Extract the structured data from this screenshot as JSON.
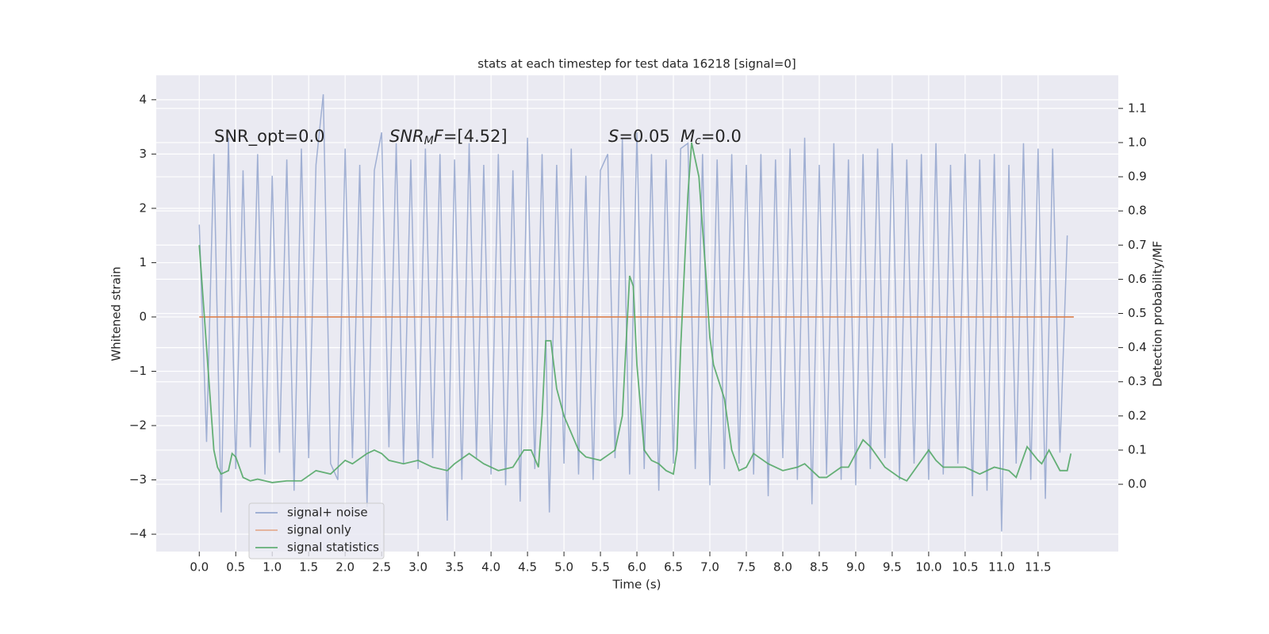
{
  "chart_data": {
    "type": "line",
    "title": "stats at each timestep for test data 16218 [signal=0]",
    "xlabel": "Time (s)",
    "ylabel": "Whitened strain",
    "y2label": "Detection probability/MF",
    "grid": true,
    "legend_loc": "lower left",
    "xlim": [
      -0.59,
      12.6
    ],
    "ylim": [
      -4.32,
      4.45
    ],
    "y2lim": [
      -0.197,
      1.197
    ],
    "xticks": [
      {
        "value": 0,
        "label": "0.0"
      },
      {
        "value": 0.5,
        "label": "0.5"
      },
      {
        "value": 1,
        "label": "1.0"
      },
      {
        "value": 1.5,
        "label": "1.5"
      },
      {
        "value": 2,
        "label": "2.0"
      },
      {
        "value": 2.5,
        "label": "2.5"
      },
      {
        "value": 3,
        "label": "3.0"
      },
      {
        "value": 3.5,
        "label": "3.5"
      },
      {
        "value": 4,
        "label": "4.0"
      },
      {
        "value": 4.5,
        "label": "4.5"
      },
      {
        "value": 5,
        "label": "5.0"
      },
      {
        "value": 5.5,
        "label": "5.5"
      },
      {
        "value": 6,
        "label": "6.0"
      },
      {
        "value": 6.5,
        "label": "6.5"
      },
      {
        "value": 7,
        "label": "7.0"
      },
      {
        "value": 7.5,
        "label": "7.5"
      },
      {
        "value": 8,
        "label": "8.0"
      },
      {
        "value": 8.5,
        "label": "8.5"
      },
      {
        "value": 9,
        "label": "9.0"
      },
      {
        "value": 9.5,
        "label": "9.5"
      },
      {
        "value": 10,
        "label": "10.0"
      },
      {
        "value": 10.5,
        "label": "10.5"
      },
      {
        "value": 11,
        "label": "11.0"
      },
      {
        "value": 11.5,
        "label": "11.5"
      }
    ],
    "yticks": [
      {
        "value": -4,
        "label": "−4"
      },
      {
        "value": -3,
        "label": "−3"
      },
      {
        "value": -2,
        "label": "−2"
      },
      {
        "value": -1,
        "label": "−1"
      },
      0,
      1,
      2,
      3,
      4
    ],
    "y2ticks": [
      {
        "value": 0,
        "label": "0.0"
      },
      {
        "value": 0.1,
        "label": "0.1"
      },
      {
        "value": 0.2,
        "label": "0.2"
      },
      {
        "value": 0.3,
        "label": "0.3"
      },
      {
        "value": 0.4,
        "label": "0.4"
      },
      {
        "value": 0.5,
        "label": "0.5"
      },
      {
        "value": 0.6,
        "label": "0.6"
      },
      {
        "value": 0.7,
        "label": "0.7"
      },
      {
        "value": 0.8,
        "label": "0.8"
      },
      {
        "value": 0.9,
        "label": "0.9"
      },
      {
        "value": 1,
        "label": "1.0"
      },
      {
        "value": 1.1,
        "label": "1.1"
      }
    ],
    "annotations": [
      [
        {
          "text": "SNR_opt=0.0"
        }
      ],
      [
        {
          "text": "SNR",
          "italic": true
        },
        {
          "text": "M",
          "italic": true,
          "sub": true
        },
        {
          "text": "F",
          "italic": true
        },
        {
          "text": "=[4.52]"
        }
      ],
      [
        {
          "text": "S",
          "italic": true
        },
        {
          "text": "=0.05"
        }
      ],
      [
        {
          "text": "M",
          "italic": true
        },
        {
          "text": "c",
          "italic": true,
          "sub": true
        },
        {
          "text": "=0.0"
        }
      ]
    ],
    "series": [
      {
        "name": "signal+ noise",
        "color": "#8da0cb",
        "x": [
          0,
          0.1,
          0.2,
          0.3,
          0.4,
          0.5,
          0.6,
          0.7,
          0.8,
          0.9,
          1,
          1.1,
          1.2,
          1.3,
          1.4,
          1.5,
          1.6,
          1.7,
          1.8,
          1.9,
          2,
          2.1,
          2.2,
          2.3,
          2.4,
          2.5,
          2.6,
          2.7,
          2.8,
          2.9,
          3,
          3.1,
          3.2,
          3.3,
          3.4,
          3.5,
          3.6,
          3.7,
          3.8,
          3.9,
          4,
          4.1,
          4.2,
          4.3,
          4.4,
          4.5,
          4.6,
          4.7,
          4.8,
          4.9,
          5,
          5.1,
          5.2,
          5.3,
          5.4,
          5.5,
          5.6,
          5.7,
          5.8,
          5.9,
          6,
          6.1,
          6.2,
          6.3,
          6.4,
          6.5,
          6.6,
          6.7,
          6.8,
          6.9,
          7,
          7.1,
          7.2,
          7.3,
          7.4,
          7.5,
          7.6,
          7.7,
          7.8,
          7.9,
          8,
          8.1,
          8.2,
          8.3,
          8.4,
          8.5,
          8.6,
          8.7,
          8.8,
          8.9,
          9,
          9.1,
          9.2,
          9.3,
          9.4,
          9.5,
          9.6,
          9.7,
          9.8,
          9.9,
          10,
          10.1,
          10.2,
          10.3,
          10.4,
          10.5,
          10.6,
          10.7,
          10.8,
          10.9,
          11,
          11.1,
          11.2,
          11.3,
          11.4,
          11.5,
          11.6,
          11.7,
          11.8,
          11.9
        ],
        "values": [
          1.7,
          -2.3,
          3.0,
          -3.6,
          3.3,
          -2.8,
          2.7,
          -2.4,
          3.0,
          -2.9,
          2.6,
          -2.5,
          2.9,
          -3.2,
          3.1,
          -2.6,
          2.8,
          4.1,
          -2.7,
          -3.0,
          3.1,
          -2.6,
          2.8,
          -3.5,
          2.7,
          3.4,
          -2.4,
          3.2,
          -2.7,
          2.9,
          -2.8,
          3.1,
          -2.6,
          3.0,
          -3.75,
          2.9,
          -3.0,
          3.2,
          -2.6,
          2.8,
          -2.9,
          3.0,
          -3.1,
          2.7,
          -3.4,
          3.3,
          -2.8,
          3.0,
          -3.6,
          2.8,
          -2.7,
          3.1,
          -2.9,
          2.6,
          -3.0,
          2.7,
          3.0,
          -2.6,
          3.3,
          -2.9,
          3.4,
          -2.8,
          3.0,
          -3.2,
          2.9,
          -2.7,
          3.1,
          3.2,
          -2.8,
          3.0,
          -3.1,
          2.9,
          -2.8,
          3.0,
          -2.7,
          2.8,
          -2.9,
          3.0,
          -3.3,
          2.9,
          -2.6,
          3.1,
          -3.0,
          3.3,
          -3.45,
          2.8,
          -2.9,
          3.2,
          -3.0,
          2.9,
          -3.1,
          3.0,
          -2.8,
          3.1,
          -2.6,
          3.2,
          -3.0,
          2.9,
          -2.7,
          3.0,
          -3.0,
          3.2,
          -2.9,
          2.8,
          -2.7,
          3.0,
          -3.3,
          2.9,
          -3.2,
          3.0,
          -3.95,
          2.8,
          -2.7,
          3.2,
          -3.0,
          3.1,
          -3.35,
          3.1,
          -2.5,
          1.5
        ]
      },
      {
        "name": "signal only",
        "color": "#dd8452",
        "x": [
          0,
          11.99
        ],
        "values": [
          0,
          0
        ]
      },
      {
        "name": "signal statistics",
        "color": "#55a868",
        "axis": "y2",
        "x": [
          0,
          0.1,
          0.2,
          0.25,
          0.3,
          0.4,
          0.45,
          0.5,
          0.55,
          0.6,
          0.7,
          0.8,
          0.9,
          1,
          1.2,
          1.4,
          1.6,
          1.8,
          2,
          2.1,
          2.3,
          2.4,
          2.5,
          2.6,
          2.8,
          3,
          3.2,
          3.4,
          3.5,
          3.7,
          3.9,
          4.1,
          4.3,
          4.45,
          4.55,
          4.65,
          4.7,
          4.75,
          4.82,
          4.9,
          5,
          5.2,
          5.3,
          5.5,
          5.7,
          5.8,
          5.9,
          5.95,
          6,
          6.1,
          6.2,
          6.3,
          6.4,
          6.5,
          6.55,
          6.6,
          6.7,
          6.75,
          6.8,
          6.85,
          6.95,
          7,
          7.05,
          7.2,
          7.3,
          7.4,
          7.5,
          7.6,
          7.8,
          8,
          8.2,
          8.3,
          8.5,
          8.6,
          8.8,
          8.9,
          9.1,
          9.2,
          9.4,
          9.6,
          9.7,
          9.9,
          10,
          10.1,
          10.2,
          10.5,
          10.7,
          10.9,
          11.1,
          11.2,
          11.35,
          11.5,
          11.55,
          11.65,
          11.8,
          11.9,
          11.95
        ],
        "values": [
          0.7,
          0.4,
          0.1,
          0.05,
          0.03,
          0.04,
          0.09,
          0.08,
          0.05,
          0.02,
          0.01,
          0.015,
          0.01,
          0.005,
          0.01,
          0.01,
          0.04,
          0.03,
          0.07,
          0.06,
          0.09,
          0.1,
          0.09,
          0.07,
          0.06,
          0.07,
          0.05,
          0.04,
          0.06,
          0.09,
          0.06,
          0.04,
          0.05,
          0.1,
          0.1,
          0.05,
          0.2,
          0.42,
          0.42,
          0.28,
          0.2,
          0.1,
          0.08,
          0.07,
          0.1,
          0.2,
          0.61,
          0.58,
          0.35,
          0.1,
          0.07,
          0.06,
          0.04,
          0.03,
          0.1,
          0.4,
          0.85,
          1.0,
          0.95,
          0.9,
          0.6,
          0.43,
          0.35,
          0.25,
          0.1,
          0.04,
          0.05,
          0.09,
          0.06,
          0.04,
          0.05,
          0.06,
          0.02,
          0.02,
          0.05,
          0.05,
          0.13,
          0.11,
          0.05,
          0.02,
          0.01,
          0.07,
          0.1,
          0.07,
          0.05,
          0.05,
          0.03,
          0.05,
          0.04,
          0.02,
          0.11,
          0.07,
          0.06,
          0.1,
          0.04,
          0.04,
          0.09
        ]
      }
    ]
  }
}
